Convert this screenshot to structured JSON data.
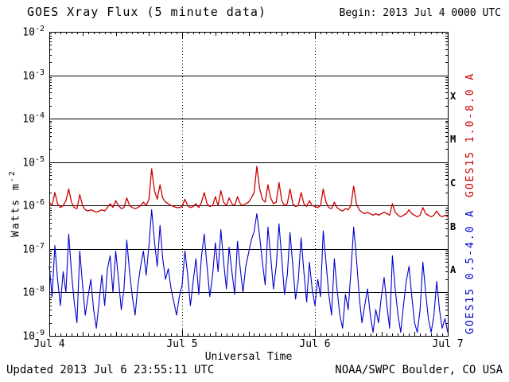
{
  "header": {
    "title": "GOES Xray Flux (5 minute data)",
    "begin": "Begin: 2013 Jul 4 0000 UTC"
  },
  "footer": {
    "updated": "Updated 2013 Jul 6 23:55:11 UTC",
    "credit": "NOAA/SWPC Boulder, CO USA"
  },
  "chart_data": {
    "type": "line",
    "title": "GOES Xray Flux (5 minute data)",
    "xlabel": "Universal Time",
    "ylabel": "Watts m^-2",
    "ylabel_main": "Watts m",
    "ylabel_exp": "-2",
    "y_axis_scale": "log",
    "ylim": [
      1e-09,
      0.01
    ],
    "y_tick_exponents": [
      -2,
      -3,
      -4,
      -5,
      -6,
      -7,
      -8,
      -9
    ],
    "x_range_hours": [
      0,
      72
    ],
    "x_tick_hours": [
      0,
      24,
      48,
      72
    ],
    "x_tick_labels": [
      "Jul 4",
      "Jul 5",
      "Jul 6",
      "Jul 7"
    ],
    "x_start_hour": 0,
    "x_step_hours": 0.5,
    "flare_class_labels": [
      "X",
      "M",
      "C",
      "B",
      "A"
    ],
    "grid": {
      "horizontal_decades": [
        -3,
        -4,
        -5,
        -6,
        -7,
        -8
      ],
      "vertical_dotted_hours": [
        24,
        48
      ]
    },
    "legend_position": "right",
    "series": [
      {
        "name": "GOES15 1.0-8.0 A",
        "color": "#cc0000",
        "values": [
          1.2e-06,
          1e-06,
          2e-06,
          1.1e-06,
          9e-07,
          1e-06,
          1.3e-06,
          2.4e-06,
          1.2e-06,
          9e-07,
          8.5e-07,
          1.8e-06,
          1e-06,
          8e-07,
          7.5e-07,
          8e-07,
          7.5e-07,
          7e-07,
          7.5e-07,
          8e-07,
          7.5e-07,
          9e-07,
          1.1e-06,
          9e-07,
          1.3e-06,
          1e-06,
          8.5e-07,
          9e-07,
          1.5e-06,
          1e-06,
          9e-07,
          8.5e-07,
          9e-07,
          1e-06,
          1.2e-06,
          1e-06,
          1.4e-06,
          7e-06,
          2.2e-06,
          1.4e-06,
          3e-06,
          1.5e-06,
          1.2e-06,
          1.1e-06,
          1e-06,
          9.5e-07,
          9e-07,
          9e-07,
          9.5e-07,
          1.4e-06,
          1e-06,
          9e-07,
          9.5e-07,
          1.1e-06,
          9e-07,
          1.2e-06,
          2e-06,
          1.1e-06,
          9.5e-07,
          1e-06,
          1.6e-06,
          1e-06,
          2.2e-06,
          1.2e-06,
          1e-06,
          1.5e-06,
          1.1e-06,
          1e-06,
          1.6e-06,
          1.1e-06,
          1e-06,
          1.1e-06,
          1.2e-06,
          1.5e-06,
          2e-06,
          8e-06,
          2.5e-06,
          1.4e-06,
          1.2e-06,
          3e-06,
          1.5e-06,
          1.1e-06,
          1.2e-06,
          3.4e-06,
          1.3e-06,
          1e-06,
          1.1e-06,
          2.4e-06,
          1.1e-06,
          9.5e-07,
          1e-06,
          2e-06,
          1.1e-06,
          9.5e-07,
          1.3e-06,
          1e-06,
          9.5e-07,
          9e-07,
          1e-06,
          2.4e-06,
          1.2e-06,
          9e-07,
          8.5e-07,
          1.2e-06,
          9e-07,
          8e-07,
          7.5e-07,
          8.5e-07,
          8e-07,
          1e-06,
          2.8e-06,
          1.1e-06,
          8e-07,
          7e-07,
          6.5e-07,
          7e-07,
          6.5e-07,
          6e-07,
          6.5e-07,
          6e-07,
          6.5e-07,
          7e-07,
          6.5e-07,
          6e-07,
          1.1e-06,
          7e-07,
          6e-07,
          5.5e-07,
          6e-07,
          6.5e-07,
          8e-07,
          6.5e-07,
          6e-07,
          5.5e-07,
          6e-07,
          9e-07,
          6.5e-07,
          6e-07,
          5.5e-07,
          6e-07,
          7.5e-07,
          6e-07,
          5.5e-07,
          6e-07,
          5.5e-07
        ]
      },
      {
        "name": "GOES15 0.5-4.0 A",
        "color": "#0000cc",
        "values": [
          4e-08,
          8e-09,
          1.2e-07,
          2e-08,
          5e-09,
          3e-08,
          1e-08,
          2.2e-07,
          3e-08,
          6e-09,
          2e-09,
          9e-08,
          1.5e-08,
          3e-09,
          8e-09,
          2e-08,
          4e-09,
          1.5e-09,
          6e-09,
          2.5e-08,
          5e-09,
          3.5e-08,
          7e-08,
          1e-08,
          9e-08,
          2e-08,
          4e-09,
          1.2e-08,
          1.6e-07,
          3e-08,
          8e-09,
          3e-09,
          1.4e-08,
          4e-08,
          9e-08,
          2.5e-08,
          1.2e-07,
          8e-07,
          1.5e-07,
          4e-08,
          3.5e-07,
          6e-08,
          2e-08,
          3.5e-08,
          1.2e-08,
          6e-09,
          3e-09,
          8e-09,
          1.5e-08,
          9e-08,
          2.5e-08,
          5e-09,
          1.8e-08,
          6e-08,
          9e-09,
          7e-08,
          2.2e-07,
          4e-08,
          8e-09,
          2.5e-08,
          1.4e-07,
          3e-08,
          2.8e-07,
          5e-08,
          1.2e-08,
          1.1e-07,
          3e-08,
          9e-09,
          1.5e-07,
          3.5e-08,
          1e-08,
          4e-08,
          8e-08,
          1.6e-07,
          2.5e-07,
          6.5e-07,
          2e-07,
          5e-08,
          1.5e-08,
          3.2e-07,
          7e-08,
          1.2e-08,
          4e-08,
          3.8e-07,
          6e-08,
          9e-09,
          2.5e-08,
          2.4e-07,
          4e-08,
          7e-09,
          2e-08,
          1.8e-07,
          3e-08,
          6e-09,
          5e-08,
          1.2e-08,
          5e-09,
          2e-08,
          8e-09,
          2.6e-07,
          5e-08,
          9e-09,
          3e-09,
          6e-08,
          1.2e-08,
          3e-09,
          1.5e-09,
          9e-09,
          4e-09,
          3e-08,
          3.2e-07,
          6e-08,
          8e-09,
          2e-09,
          5e-09,
          1.2e-08,
          3e-09,
          1.2e-09,
          4e-09,
          2e-09,
          8e-09,
          2.2e-08,
          5e-09,
          1.5e-09,
          7e-08,
          1.2e-08,
          3e-09,
          1.2e-09,
          5e-09,
          1.8e-08,
          4e-08,
          8e-09,
          2e-09,
          1.2e-09,
          4e-09,
          5e-08,
          1e-08,
          2.5e-09,
          1.2e-09,
          3e-09,
          1.8e-08,
          4e-09,
          1.5e-09,
          2.5e-09,
          1.2e-09
        ]
      }
    ]
  }
}
